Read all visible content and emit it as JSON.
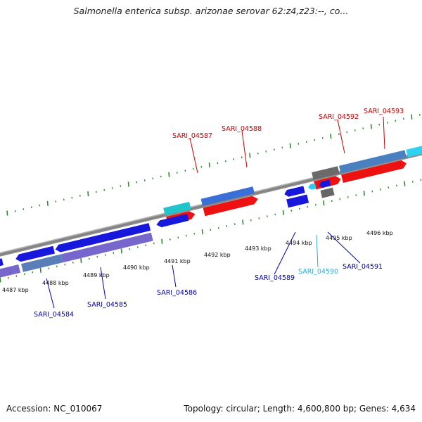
{
  "title": "Salmonella enterica subsp. arizonae serovar 62:z4,z23:--, co...",
  "footer": {
    "accession": "Accession: NC_010067",
    "summary": "Topology: circular; Length: 4,600,800 bp; Genes: 4,634"
  },
  "colors": {
    "backbone": "#8c8c8c",
    "tick": "#2e8b2e",
    "forward_label": "#cc0000",
    "reverse_label": "#0000aa",
    "highlight_label": "#33aadd"
  },
  "scale_labels": [
    "4487 kbp",
    "4488 kbp",
    "4489 kbp",
    "4490 kbp",
    "4491 kbp",
    "4492 kbp",
    "4493 kbp",
    "4494 kbp",
    "4495 kbp",
    "4496 kbp"
  ],
  "gene_labels": [
    {
      "text": "SARI_04587",
      "color": "#cc0000"
    },
    {
      "text": "SARI_04588",
      "color": "#cc0000"
    },
    {
      "text": "SARI_04592",
      "color": "#cc0000"
    },
    {
      "text": "SARI_04593",
      "color": "#cc0000"
    },
    {
      "text": "SARI_04584",
      "color": "#0000aa"
    },
    {
      "text": "SARI_04585",
      "color": "#0000aa"
    },
    {
      "text": "SARI_04586",
      "color": "#0000aa"
    },
    {
      "text": "SARI_04589",
      "color": "#0000aa"
    },
    {
      "text": "SARI_04590",
      "color": "#33aadd"
    },
    {
      "text": "SARI_04591",
      "color": "#0000aa"
    }
  ]
}
